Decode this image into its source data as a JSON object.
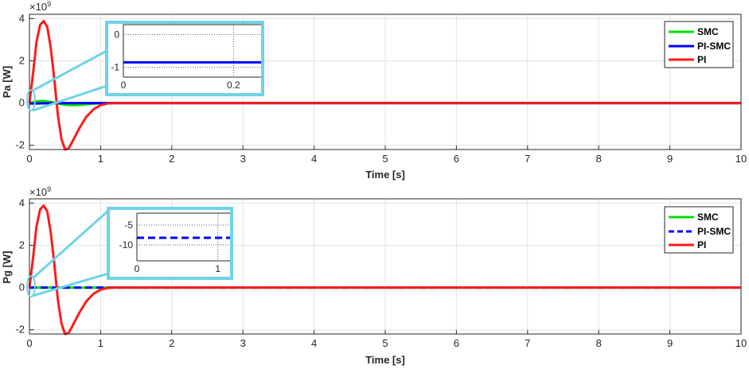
{
  "chart_data": [
    {
      "type": "line",
      "panel": "top",
      "ylabel": "Pa [W]",
      "xlabel": "Time [s]",
      "exponent_base": "×10",
      "exponent_power": "9",
      "xlim": [
        0,
        10
      ],
      "ylim": [
        -2.2,
        4.2
      ],
      "xticks": [
        "0",
        "1",
        "2",
        "3",
        "4",
        "5",
        "6",
        "7",
        "8",
        "9",
        "10"
      ],
      "yticks": [
        "-2",
        "0",
        "2",
        "4"
      ],
      "ytick_values": [
        -2,
        0,
        2,
        4
      ],
      "grid": true,
      "legend_position": "top-right",
      "series": [
        {
          "name": "SMC",
          "color": "#00e000",
          "style": "solid",
          "x": [
            0,
            0.1,
            0.2,
            0.3,
            0.4,
            0.5,
            0.6,
            0.7,
            0.8,
            0.9,
            1.0,
            1.1,
            1.3,
            10
          ],
          "y": [
            0,
            0.08,
            0.1,
            0.05,
            -0.02,
            -0.08,
            -0.1,
            -0.09,
            -0.06,
            -0.03,
            -0.01,
            0,
            0,
            0
          ]
        },
        {
          "name": "PI-SMC",
          "color": "#0000ff",
          "style": "solid",
          "x": [
            0,
            0.1,
            0.3,
            0.6,
            1.0,
            10
          ],
          "y": [
            -0.02,
            -0.02,
            -0.01,
            0,
            0,
            0
          ]
        },
        {
          "name": "PI",
          "color": "#ff1a1a",
          "style": "solid",
          "x": [
            0,
            0.05,
            0.1,
            0.15,
            0.2,
            0.25,
            0.3,
            0.35,
            0.4,
            0.45,
            0.5,
            0.55,
            0.6,
            0.7,
            0.8,
            0.9,
            1.0,
            1.1,
            1.2,
            10
          ],
          "y": [
            0,
            1.4,
            2.9,
            3.7,
            3.88,
            3.6,
            2.6,
            1.1,
            -0.6,
            -1.7,
            -2.2,
            -2.15,
            -1.85,
            -1.2,
            -0.65,
            -0.3,
            -0.1,
            -0.02,
            0,
            0
          ]
        }
      ],
      "inset": {
        "xlim": [
          0,
          0.25
        ],
        "ylim": [
          -1.3,
          0.3
        ],
        "xticks": [
          "0",
          "0.2"
        ],
        "xtick_values": [
          0,
          0.2
        ],
        "yticks": [
          "0",
          "-1"
        ],
        "ytick_values": [
          0,
          -1
        ],
        "series": [
          {
            "name": "PI-SMC",
            "color": "#0000ff",
            "style": "solid",
            "x": [
              0,
              0.25
            ],
            "y": [
              -0.85,
              -0.85
            ]
          }
        ]
      }
    },
    {
      "type": "line",
      "panel": "bottom",
      "ylabel": "Pg [W]",
      "xlabel": "Time [s]",
      "exponent_base": "×10",
      "exponent_power": "9",
      "xlim": [
        0,
        10
      ],
      "ylim": [
        -2.2,
        4.2
      ],
      "xticks": [
        "0",
        "1",
        "2",
        "3",
        "4",
        "5",
        "6",
        "7",
        "8",
        "9",
        "10"
      ],
      "yticks": [
        "-2",
        "0",
        "2",
        "4"
      ],
      "ytick_values": [
        -2,
        0,
        2,
        4
      ],
      "grid": true,
      "legend_position": "top-right",
      "series": [
        {
          "name": "SMC",
          "color": "#00e000",
          "style": "solid",
          "x": [
            0,
            1.1,
            10
          ],
          "y": [
            0,
            0,
            0
          ]
        },
        {
          "name": "PI-SMC",
          "color": "#0000ff",
          "style": "dashed",
          "x": [
            0,
            1.1,
            10
          ],
          "y": [
            0,
            0,
            0
          ]
        },
        {
          "name": "PI",
          "color": "#ff1a1a",
          "style": "solid",
          "x": [
            0,
            0.05,
            0.1,
            0.15,
            0.2,
            0.25,
            0.3,
            0.35,
            0.4,
            0.45,
            0.5,
            0.55,
            0.6,
            0.7,
            0.8,
            0.9,
            1.0,
            1.1,
            1.2,
            10
          ],
          "y": [
            0,
            1.4,
            2.9,
            3.7,
            3.88,
            3.6,
            2.6,
            1.1,
            -0.6,
            -1.7,
            -2.2,
            -2.15,
            -1.85,
            -1.2,
            -0.65,
            -0.3,
            -0.1,
            -0.02,
            0,
            0
          ]
        }
      ],
      "inset": {
        "xlim": [
          0,
          1.15
        ],
        "ylim": [
          -14,
          -2
        ],
        "xticks": [
          "0",
          "1"
        ],
        "xtick_values": [
          0,
          1
        ],
        "yticks": [
          "-5",
          "-10"
        ],
        "ytick_values": [
          -5,
          -10
        ],
        "series": [
          {
            "name": "PI-SMC",
            "color": "#0000ff",
            "style": "dashed",
            "x": [
              0,
              1.15
            ],
            "y": [
              -8.2,
              -8.2
            ]
          }
        ]
      }
    }
  ]
}
